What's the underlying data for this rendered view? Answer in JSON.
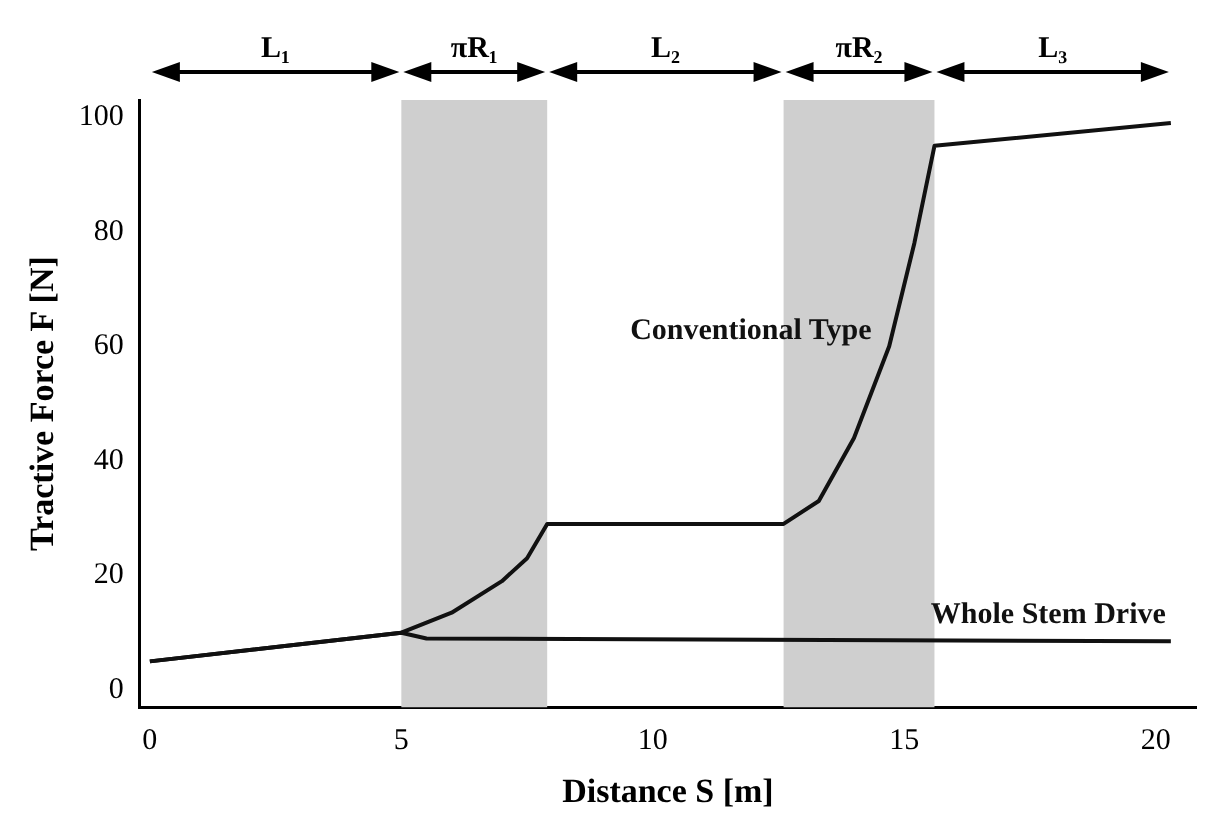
{
  "chart_data": {
    "type": "line",
    "xlabel": "Distance S [m]",
    "ylabel": "Tractive Force F [N]",
    "xlim": [
      -0.2,
      20.8
    ],
    "xticks": [
      0,
      5,
      10,
      15,
      20
    ],
    "ylim": [
      -3,
      103
    ],
    "yticks": [
      0,
      20,
      40,
      60,
      80,
      100
    ],
    "grid": false,
    "legend": false,
    "marker": "none",
    "line_style": "solid",
    "series": [
      {
        "name": "Conventional Type",
        "color": "#111111",
        "x": [
          0,
          5,
          6,
          7,
          7.5,
          7.9,
          12.6,
          13.3,
          14,
          14.7,
          15.2,
          15.6,
          20.3
        ],
        "values": [
          5,
          10,
          13.5,
          19,
          23,
          29,
          29,
          33,
          44,
          60,
          78,
          95,
          99
        ]
      },
      {
        "name": "Whole Stem Drive",
        "color": "#111111",
        "x": [
          0,
          5,
          5.5,
          20.3
        ],
        "values": [
          5,
          10,
          9,
          8.5
        ]
      }
    ],
    "bands": [
      {
        "axis": "x",
        "from": 5,
        "to": 7.9,
        "label": "πR₁",
        "color": "#cfcfcf"
      },
      {
        "axis": "x",
        "from": 12.6,
        "to": 15.6,
        "label": "πR₂",
        "color": "#cfcfcf"
      }
    ],
    "annotations": [
      "L₁",
      "L₂",
      "L₃"
    ]
  }
}
